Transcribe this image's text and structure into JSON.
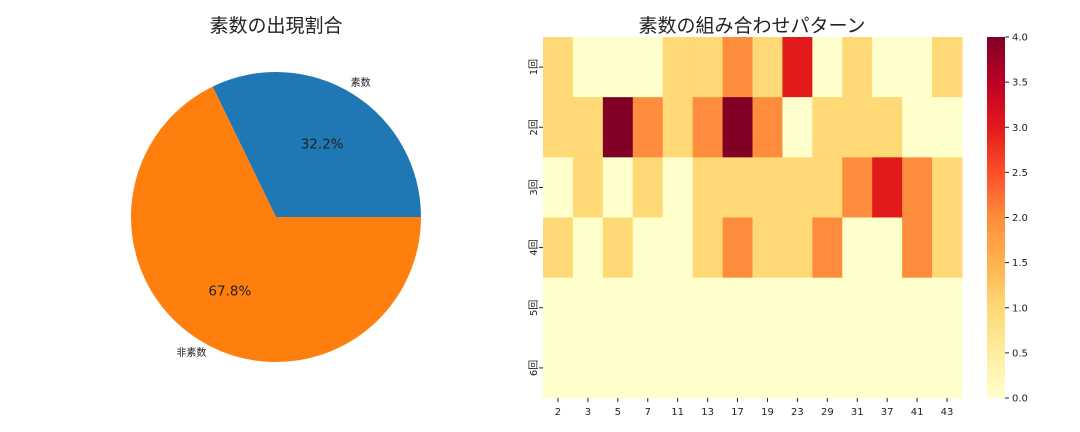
{
  "chart_data": [
    {
      "type": "pie",
      "title": "素数の出現割合",
      "labels": [
        "素数",
        "非素数"
      ],
      "values": [
        32.2,
        67.8
      ],
      "autopct": [
        "32.2%",
        "67.8%"
      ],
      "colors": [
        "#1f77b4",
        "#ff7f0e"
      ]
    },
    {
      "type": "heatmap",
      "title": "素数の組み合わせパターン",
      "x": [
        "2",
        "3",
        "5",
        "7",
        "11",
        "13",
        "17",
        "19",
        "23",
        "29",
        "31",
        "37",
        "41",
        "43"
      ],
      "y": [
        "1回",
        "2回",
        "3回",
        "4回",
        "5回",
        "6回"
      ],
      "values": [
        [
          1,
          0,
          0,
          0,
          1,
          1,
          2,
          1,
          3,
          0,
          1,
          0,
          0,
          1
        ],
        [
          1,
          1,
          4,
          2,
          1,
          2,
          4,
          2,
          0,
          1,
          1,
          1,
          0,
          0
        ],
        [
          0,
          1,
          0,
          1,
          0,
          1,
          1,
          1,
          1,
          1,
          2,
          3,
          2,
          1
        ],
        [
          1,
          0,
          1,
          0,
          0,
          1,
          2,
          1,
          1,
          2,
          0,
          0,
          2,
          1
        ],
        [
          0,
          0,
          0,
          0,
          0,
          0,
          0,
          0,
          0,
          0,
          0,
          0,
          0,
          0
        ],
        [
          0,
          0,
          0,
          0,
          0,
          0,
          0,
          0,
          0,
          0,
          0,
          0,
          0,
          0
        ]
      ],
      "colormap": "YlOrRd",
      "vmin": 0,
      "vmax": 4,
      "colorbar_ticks": [
        "0.0",
        "0.5",
        "1.0",
        "1.5",
        "2.0",
        "2.5",
        "3.0",
        "3.5",
        "4.0"
      ]
    }
  ]
}
